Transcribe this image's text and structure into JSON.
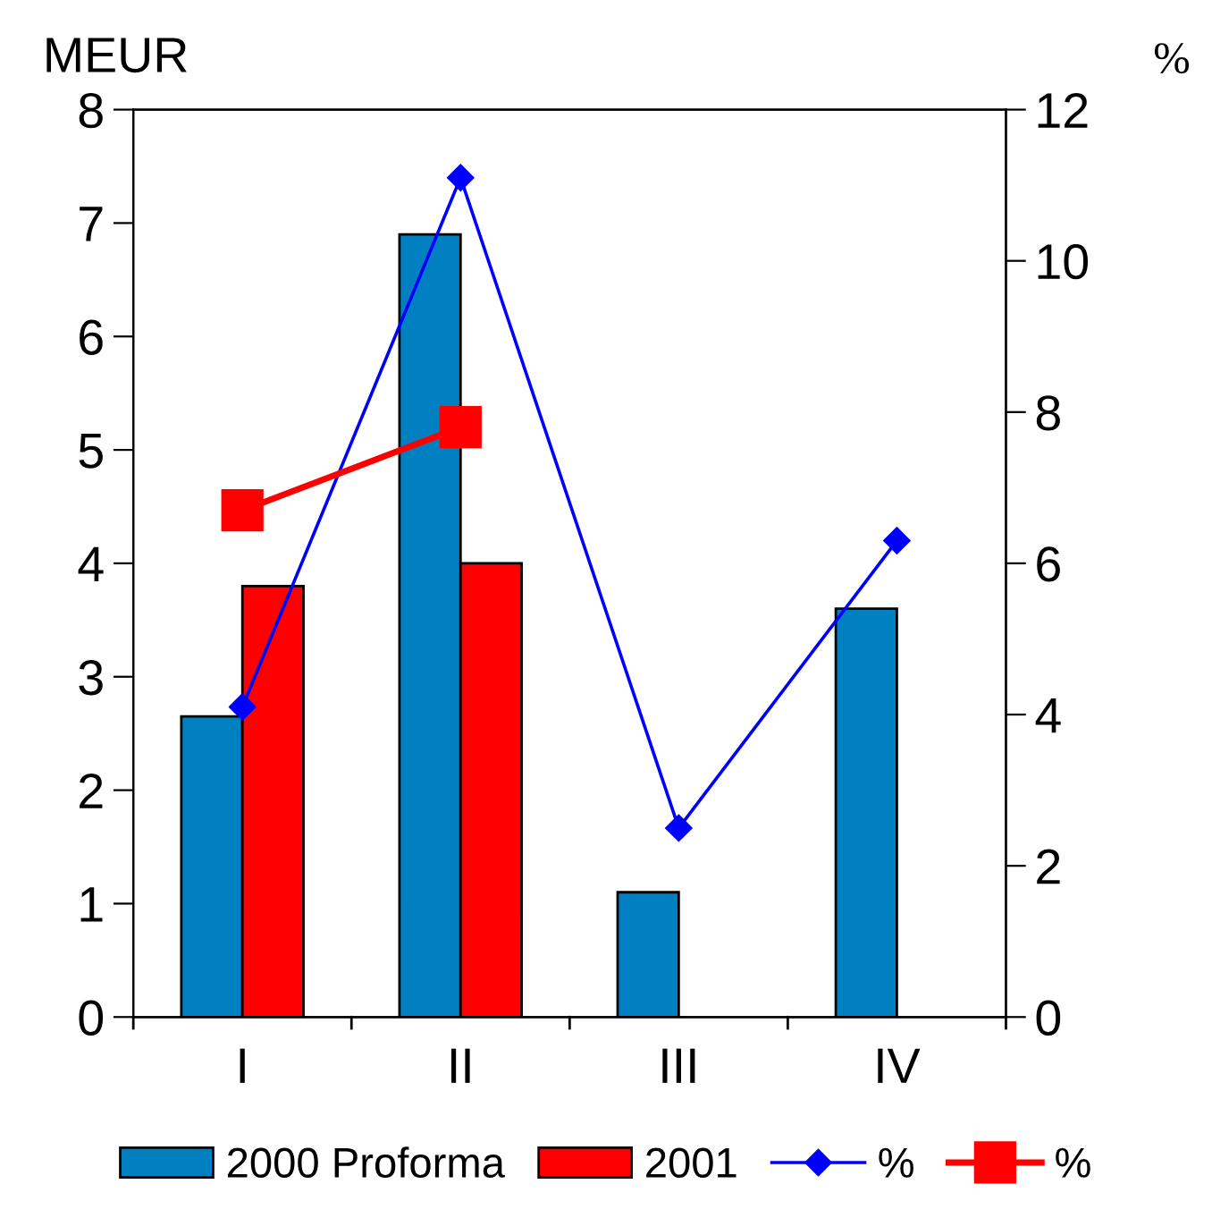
{
  "chart_data": {
    "type": "bar",
    "categories": [
      "I",
      "II",
      "III",
      "IV"
    ],
    "ylabel": "MEUR",
    "y2label": "%",
    "ylim": [
      0,
      8
    ],
    "yticks": [
      0,
      1,
      2,
      3,
      4,
      5,
      6,
      7,
      8
    ],
    "y2lim": [
      0,
      12
    ],
    "y2ticks": [
      0,
      2,
      4,
      6,
      8,
      10,
      12
    ],
    "series": [
      {
        "name": "2000 Proforma",
        "color": "#0080c0",
        "values": [
          2.65,
          6.9,
          1.1,
          3.6
        ]
      },
      {
        "name": "2001",
        "color": "#ff0000",
        "values": [
          3.8,
          4.0,
          null,
          null
        ]
      },
      {
        "name": "%",
        "type": "line",
        "axis": "y2",
        "color": "#0000ff",
        "marker": "diamond",
        "values": [
          4.1,
          11.1,
          2.5,
          6.3
        ]
      },
      {
        "name": "%",
        "type": "line",
        "axis": "y2",
        "color": "#ff0000",
        "marker": "square",
        "values": [
          6.7,
          7.8,
          null,
          null
        ]
      }
    ],
    "grid": false,
    "legend": "bottom"
  }
}
